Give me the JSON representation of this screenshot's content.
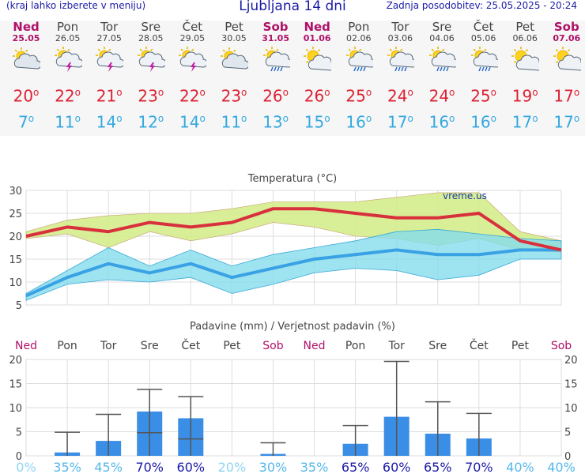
{
  "header": {
    "menu_note": "(kraj lahko izberete v meniju)",
    "title": "Ljubljana 14 dni",
    "last_update": "Zadnja posodobitev: 25.05.2025 - 20:24"
  },
  "days": [
    {
      "name": "Ned",
      "date": "25.05",
      "weekend": true,
      "icon": "partly-cloudy-icon",
      "tmax": "20",
      "tmin": "7"
    },
    {
      "name": "Pon",
      "date": "26.05",
      "weekend": false,
      "icon": "thunderstorm-icon",
      "tmax": "22",
      "tmin": "11"
    },
    {
      "name": "Tor",
      "date": "27.05",
      "weekend": false,
      "icon": "thunderstorm-icon",
      "tmax": "21",
      "tmin": "14"
    },
    {
      "name": "Sre",
      "date": "28.05",
      "weekend": false,
      "icon": "thunderstorm-icon",
      "tmax": "23",
      "tmin": "12"
    },
    {
      "name": "Čet",
      "date": "29.05",
      "weekend": false,
      "icon": "thunderstorm-icon",
      "tmax": "22",
      "tmin": "14"
    },
    {
      "name": "Pet",
      "date": "30.05",
      "weekend": false,
      "icon": "partly-cloudy-icon",
      "tmax": "23",
      "tmin": "11"
    },
    {
      "name": "Sob",
      "date": "31.05",
      "weekend": true,
      "icon": "sun-rain-icon",
      "tmax": "26",
      "tmin": "13"
    },
    {
      "name": "Ned",
      "date": "01.06",
      "weekend": true,
      "icon": "sun-cloud-icon",
      "tmax": "26",
      "tmin": "15"
    },
    {
      "name": "Pon",
      "date": "02.06",
      "weekend": false,
      "icon": "sun-rain-icon",
      "tmax": "25",
      "tmin": "16"
    },
    {
      "name": "Tor",
      "date": "03.06",
      "weekend": false,
      "icon": "sun-rain-icon",
      "tmax": "24",
      "tmin": "17"
    },
    {
      "name": "Sre",
      "date": "04.06",
      "weekend": false,
      "icon": "sun-rain-icon",
      "tmax": "24",
      "tmin": "16"
    },
    {
      "name": "Čet",
      "date": "05.06",
      "weekend": false,
      "icon": "sun-rain-icon",
      "tmax": "25",
      "tmin": "16"
    },
    {
      "name": "Pet",
      "date": "06.06",
      "weekend": false,
      "icon": "sun-cloud-icon",
      "tmax": "19",
      "tmin": "17"
    },
    {
      "name": "Sob",
      "date": "07.06",
      "weekend": true,
      "icon": "sun-cloud-icon",
      "tmax": "17",
      "tmin": "17"
    }
  ],
  "colors": {
    "weekend": "#b01068",
    "weekday": "#444444",
    "tmax": "#dd2233",
    "tmin": "#35a8e0",
    "max_band": "#d4ec8c",
    "min_band": "#86dcec",
    "overlap": "#9cd8a0",
    "precip_bar": "#3a8ee6",
    "error_bar": "#555555",
    "prob_low": "#55b8ea",
    "prob_high": "#1a1aa8"
  },
  "chart_data": [
    {
      "type": "line",
      "title": "Temperatura (°C)",
      "watermark": "vreme.us",
      "ylim": [
        5,
        30
      ],
      "yticks": [
        5,
        10,
        15,
        20,
        25,
        30
      ],
      "series": [
        {
          "name": "max",
          "values": [
            20,
            22,
            21,
            23,
            22,
            23,
            26,
            26,
            25,
            24,
            24,
            25,
            19,
            17
          ]
        },
        {
          "name": "min",
          "values": [
            7,
            11,
            14,
            12,
            14,
            11,
            13,
            15,
            16,
            17,
            16,
            16,
            17,
            17
          ]
        }
      ],
      "max_range": {
        "low": [
          19.5,
          20.5,
          17.5,
          21,
          19,
          20.5,
          23,
          22,
          20,
          19.5,
          18,
          19.5,
          17,
          16.5
        ],
        "high": [
          21,
          23.5,
          24.5,
          25,
          25,
          26,
          27.5,
          27.5,
          27.5,
          28.5,
          29.5,
          29.5,
          21,
          19
        ]
      },
      "min_range": {
        "low": [
          6,
          9.5,
          10.5,
          10,
          11,
          7.5,
          9.5,
          12,
          13,
          12.5,
          10.5,
          11.5,
          15,
          15
        ],
        "high": [
          7.5,
          12.5,
          17.5,
          13.5,
          17,
          13.5,
          16,
          17.5,
          19,
          21,
          21.5,
          20.5,
          19.5,
          19
        ]
      }
    },
    {
      "type": "bar",
      "title": "Padavine (mm) / Verjetnost padavin (%)",
      "ylim": [
        0,
        20
      ],
      "yticks": [
        0,
        5,
        10,
        15,
        20
      ],
      "categories": [
        "Ned",
        "Pon",
        "Tor",
        "Sre",
        "Čet",
        "Pet",
        "Sob",
        "Ned",
        "Pon",
        "Tor",
        "Sre",
        "Čet",
        "Pet",
        "Sob"
      ],
      "weekend": [
        true,
        false,
        false,
        false,
        false,
        false,
        true,
        true,
        false,
        false,
        false,
        false,
        false,
        true
      ],
      "values": [
        0,
        0.7,
        3.1,
        9.2,
        7.8,
        0,
        0.4,
        0,
        2.5,
        8.1,
        4.6,
        3.6,
        0,
        0
      ],
      "err_low": [
        0,
        0,
        0,
        4.8,
        3.5,
        0,
        0,
        0,
        0,
        0,
        0,
        0,
        0,
        0
      ],
      "err_high": [
        0,
        4.9,
        8.6,
        13.8,
        12.3,
        0,
        2.7,
        0,
        6.3,
        19.6,
        11.2,
        8.8,
        0,
        0
      ],
      "probabilities": [
        "0%",
        "35%",
        "45%",
        "70%",
        "60%",
        "20%",
        "30%",
        "35%",
        "65%",
        "60%",
        "65%",
        "70%",
        "40%",
        "40%"
      ],
      "prob_values": [
        0,
        35,
        45,
        70,
        60,
        20,
        30,
        35,
        65,
        60,
        65,
        70,
        40,
        40
      ]
    }
  ]
}
